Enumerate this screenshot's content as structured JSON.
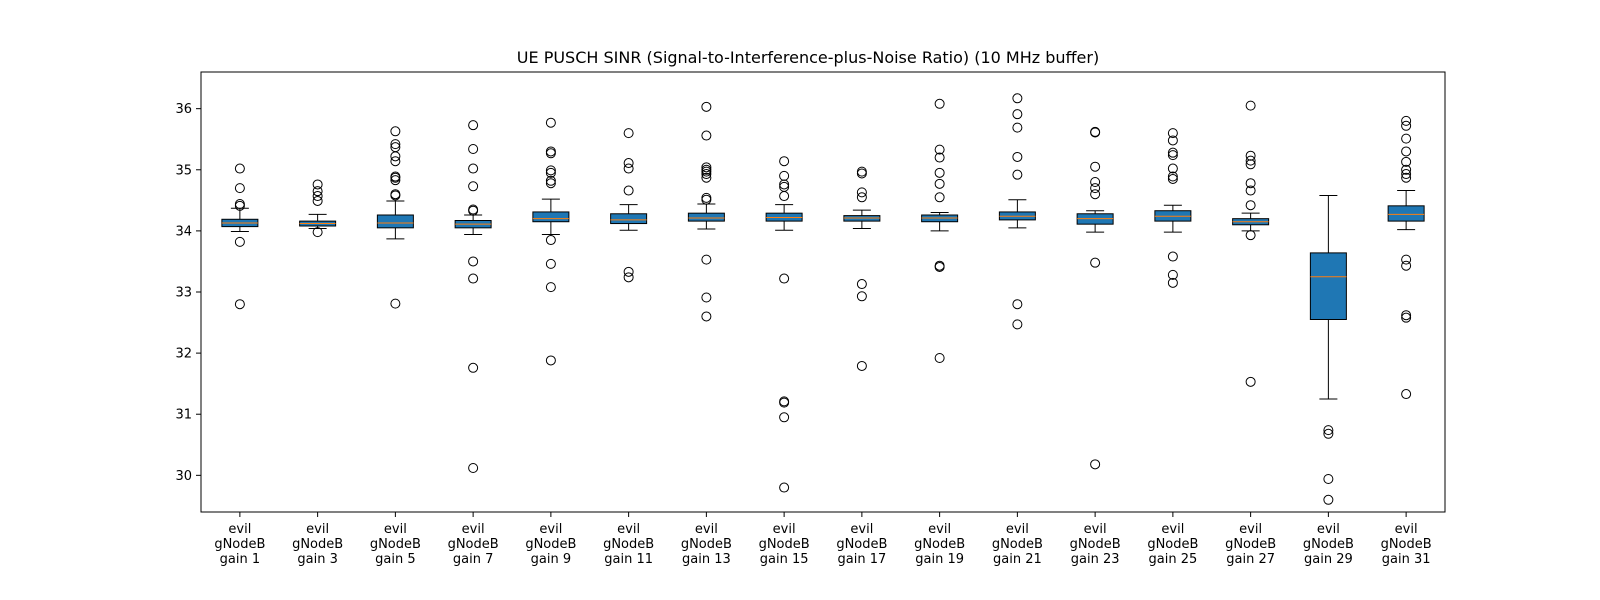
{
  "chart_data": {
    "type": "boxplot",
    "title": "UE PUSCH SINR (Signal-to-Interference-plus-Noise Ratio) (10 MHz buffer)",
    "xlabel": "",
    "ylabel": "",
    "ylim": [
      29.4,
      36.6
    ],
    "yticks": [
      30,
      31,
      32,
      33,
      34,
      35,
      36
    ],
    "grid": false,
    "legend": "none",
    "colors": {
      "box_fill": "#1f77b4",
      "median": "#ff7f0e",
      "edge": "#000000"
    },
    "categories": [
      [
        "evil",
        "gNodeB",
        "gain 1"
      ],
      [
        "evil",
        "gNodeB",
        "gain 3"
      ],
      [
        "evil",
        "gNodeB",
        "gain 5"
      ],
      [
        "evil",
        "gNodeB",
        "gain 7"
      ],
      [
        "evil",
        "gNodeB",
        "gain 9"
      ],
      [
        "evil",
        "gNodeB",
        "gain 11"
      ],
      [
        "evil",
        "gNodeB",
        "gain 13"
      ],
      [
        "evil",
        "gNodeB",
        "gain 15"
      ],
      [
        "evil",
        "gNodeB",
        "gain 17"
      ],
      [
        "evil",
        "gNodeB",
        "gain 19"
      ],
      [
        "evil",
        "gNodeB",
        "gain 21"
      ],
      [
        "evil",
        "gNodeB",
        "gain 23"
      ],
      [
        "evil",
        "gNodeB",
        "gain 25"
      ],
      [
        "evil",
        "gNodeB",
        "gain 27"
      ],
      [
        "evil",
        "gNodeB",
        "gain 29"
      ],
      [
        "evil",
        "gNodeB",
        "gain 31"
      ]
    ],
    "boxes": [
      {
        "whislo": 33.99,
        "q1": 34.07,
        "med": 34.13,
        "q3": 34.19,
        "whishi": 34.37,
        "fliers": [
          32.8,
          33.82,
          34.41,
          34.44,
          34.7,
          35.02
        ]
      },
      {
        "whislo": 34.04,
        "q1": 34.08,
        "med": 34.12,
        "q3": 34.16,
        "whishi": 34.27,
        "fliers": [
          33.98,
          34.49,
          34.57,
          34.65,
          34.76
        ]
      },
      {
        "whislo": 33.87,
        "q1": 34.05,
        "med": 34.13,
        "q3": 34.26,
        "whishi": 34.49,
        "fliers": [
          32.81,
          34.58,
          34.6,
          34.83,
          34.87,
          34.89,
          35.14,
          35.22,
          35.37,
          35.42,
          35.63
        ]
      },
      {
        "whislo": 33.94,
        "q1": 34.05,
        "med": 34.11,
        "q3": 34.17,
        "whishi": 34.26,
        "fliers": [
          30.12,
          31.76,
          33.22,
          33.5,
          34.33,
          34.35,
          34.73,
          35.02,
          35.34,
          35.73
        ]
      },
      {
        "whislo": 33.94,
        "q1": 34.15,
        "med": 34.2,
        "q3": 34.31,
        "whishi": 34.52,
        "fliers": [
          31.88,
          33.08,
          33.46,
          33.85,
          34.78,
          34.82,
          34.95,
          34.99,
          35.27,
          35.3,
          35.77
        ]
      },
      {
        "whislo": 34.01,
        "q1": 34.12,
        "med": 34.18,
        "q3": 34.28,
        "whishi": 34.43,
        "fliers": [
          33.24,
          33.33,
          34.66,
          35.02,
          35.11,
          35.6
        ]
      },
      {
        "whislo": 34.03,
        "q1": 34.16,
        "med": 34.21,
        "q3": 34.29,
        "whishi": 34.44,
        "fliers": [
          32.6,
          32.91,
          33.53,
          34.51,
          34.54,
          34.87,
          34.93,
          34.97,
          35.0,
          35.04,
          35.56,
          36.03
        ]
      },
      {
        "whislo": 34.01,
        "q1": 34.16,
        "med": 34.22,
        "q3": 34.29,
        "whishi": 34.43,
        "fliers": [
          29.8,
          30.95,
          31.19,
          31.21,
          33.22,
          34.57,
          34.72,
          34.76,
          34.9,
          35.14
        ]
      },
      {
        "whislo": 34.04,
        "q1": 34.16,
        "med": 34.21,
        "q3": 34.25,
        "whishi": 34.34,
        "fliers": [
          31.79,
          32.93,
          33.13,
          34.55,
          34.63,
          34.94,
          34.97
        ]
      },
      {
        "whislo": 34.0,
        "q1": 34.15,
        "med": 34.21,
        "q3": 34.26,
        "whishi": 34.3,
        "fliers": [
          31.92,
          33.41,
          33.43,
          34.55,
          34.77,
          34.95,
          35.2,
          35.33,
          36.08
        ]
      },
      {
        "whislo": 34.05,
        "q1": 34.18,
        "med": 34.24,
        "q3": 34.31,
        "whishi": 34.51,
        "fliers": [
          32.47,
          32.8,
          34.92,
          35.21,
          35.69,
          35.91,
          36.17
        ]
      },
      {
        "whislo": 33.98,
        "q1": 34.11,
        "med": 34.2,
        "q3": 34.28,
        "whishi": 34.33,
        "fliers": [
          30.18,
          33.48,
          34.6,
          34.7,
          34.8,
          35.05,
          35.61,
          35.62
        ]
      },
      {
        "whislo": 33.98,
        "q1": 34.16,
        "med": 34.24,
        "q3": 34.33,
        "whishi": 34.42,
        "fliers": [
          33.15,
          33.28,
          33.58,
          34.85,
          34.89,
          35.02,
          35.24,
          35.28,
          35.48,
          35.6
        ]
      },
      {
        "whislo": 34.0,
        "q1": 34.1,
        "med": 34.15,
        "q3": 34.2,
        "whishi": 34.29,
        "fliers": [
          31.53,
          33.93,
          34.42,
          34.66,
          34.78,
          35.09,
          35.15,
          35.23,
          36.05
        ]
      },
      {
        "whislo": 31.25,
        "q1": 32.55,
        "med": 33.25,
        "q3": 33.64,
        "whishi": 34.58,
        "fliers": [
          29.6,
          29.94,
          30.68,
          30.74
        ]
      },
      {
        "whislo": 34.02,
        "q1": 34.16,
        "med": 34.27,
        "q3": 34.41,
        "whishi": 34.66,
        "fliers": [
          31.33,
          32.58,
          32.62,
          33.43,
          33.53,
          34.87,
          34.93,
          35.0,
          35.13,
          35.3,
          35.51,
          35.72,
          35.8
        ]
      }
    ]
  }
}
